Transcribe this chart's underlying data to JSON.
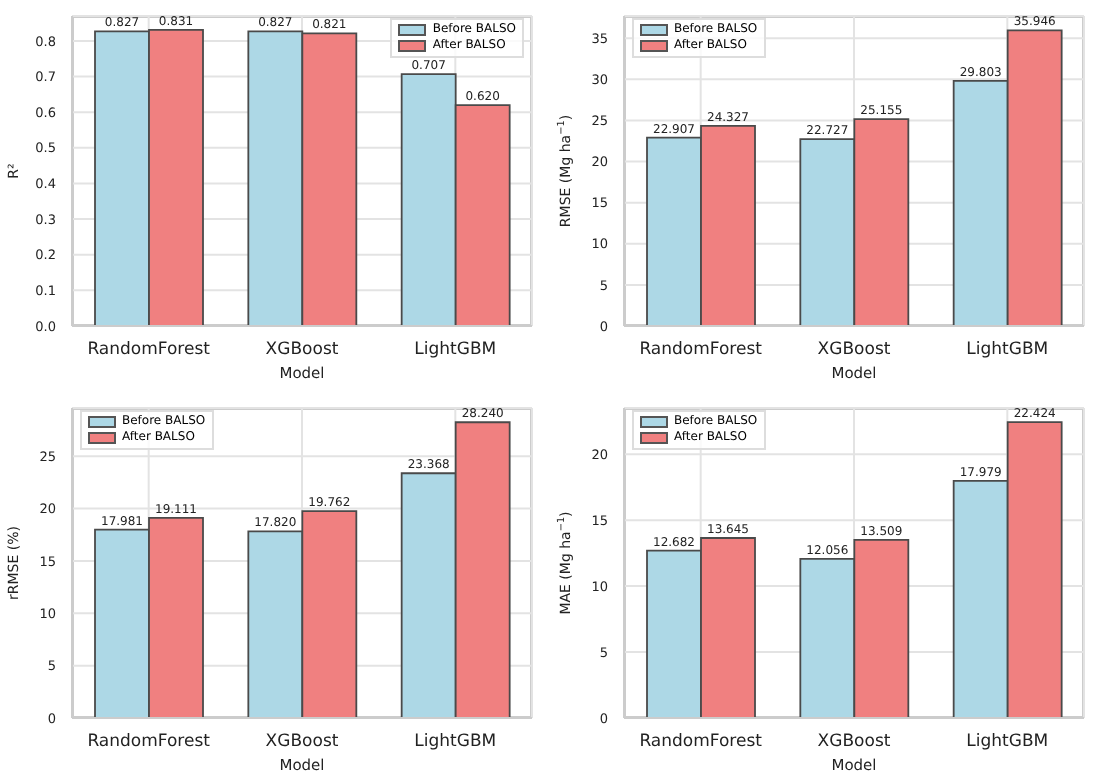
{
  "chart_data": [
    {
      "type": "bar",
      "xlabel": "Model",
      "ylabel": "R²",
      "categories": [
        "RandomForest",
        "XGBoost",
        "LightGBM"
      ],
      "series": [
        {
          "name": "Before BALSO",
          "color": "#add8e6",
          "values": [
            0.827,
            0.827,
            0.707
          ]
        },
        {
          "name": "After BALSO",
          "color": "#f08080",
          "values": [
            0.831,
            0.821,
            0.62
          ],
          "value_labels": [
            "0.831",
            "0.821",
            "0.620"
          ]
        }
      ],
      "ylim": [
        0,
        0.87
      ],
      "yticks": [
        {
          "value": 0,
          "label": "0.0"
        },
        0.1,
        0.2,
        0.3,
        0.4,
        0.5,
        0.6,
        0.7,
        0.8
      ],
      "grid": true,
      "legend": "top right",
      "data_labels": true
    },
    {
      "type": "bar",
      "xlabel": "Model",
      "ylabel": "RMSE (Mg ha$^{−1}$)",
      "categories": [
        "RandomForest",
        "XGBoost",
        "LightGBM"
      ],
      "series": [
        {
          "name": "Before BALSO",
          "color": "#add8e6",
          "values": [
            22.907,
            22.727,
            29.803
          ]
        },
        {
          "name": "After BALSO",
          "color": "#f08080",
          "values": [
            24.327,
            25.155,
            35.946
          ]
        }
      ],
      "ylim": [
        0,
        37.7
      ],
      "yticks": [
        0,
        5,
        10,
        15,
        20,
        25,
        30,
        35
      ],
      "grid": true,
      "legend": "top left",
      "data_labels": true
    },
    {
      "type": "bar",
      "xlabel": "Model",
      "ylabel": "rRMSE (%)",
      "categories": [
        "RandomForest",
        "XGBoost",
        "LightGBM"
      ],
      "series": [
        {
          "name": "Before BALSO",
          "color": "#add8e6",
          "values": [
            17.981,
            17.82,
            23.368
          ],
          "value_labels": [
            "17.981",
            "17.820",
            "23.368"
          ]
        },
        {
          "name": "After BALSO",
          "color": "#f08080",
          "values": [
            19.111,
            19.762,
            28.24
          ],
          "value_labels": [
            "19.111",
            "19.762",
            "28.240"
          ]
        }
      ],
      "ylim": [
        0,
        29.6
      ],
      "yticks": [
        0,
        5,
        10,
        15,
        20,
        25
      ],
      "grid": true,
      "legend": "top left",
      "data_labels": true
    },
    {
      "type": "bar",
      "xlabel": "Model",
      "ylabel": "MAE (Mg ha$^{−1}$)",
      "categories": [
        "RandomForest",
        "XGBoost",
        "LightGBM"
      ],
      "series": [
        {
          "name": "Before BALSO",
          "color": "#add8e6",
          "values": [
            12.682,
            12.056,
            17.979
          ]
        },
        {
          "name": "After BALSO",
          "color": "#f08080",
          "values": [
            13.645,
            13.509,
            22.424
          ]
        }
      ],
      "ylim": [
        0,
        23.5
      ],
      "yticks": [
        0,
        5,
        10,
        15,
        20
      ],
      "grid": true,
      "legend": "top left",
      "data_labels": true
    }
  ]
}
